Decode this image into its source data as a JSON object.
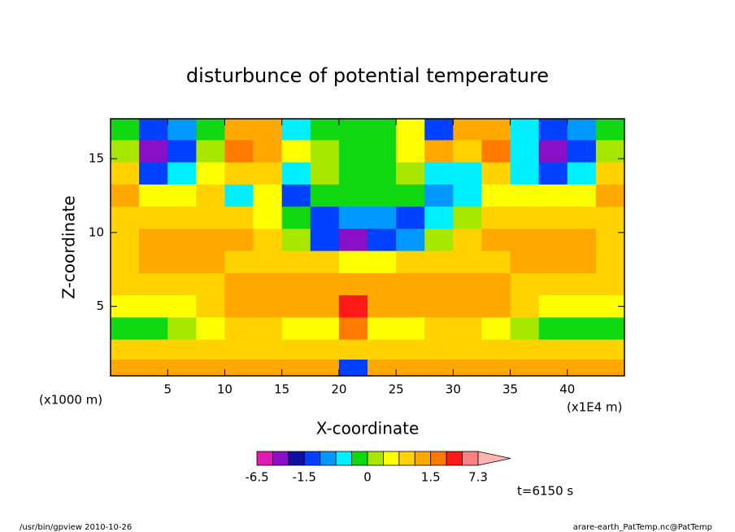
{
  "chart_data": {
    "type": "heatmap",
    "title": "disturbunce of potential temperature",
    "x_label": "X-coordinate",
    "y_label": "Z-coordinate",
    "x_unit": "(x1000 m)",
    "x_unit_right": "(x1E4 m)",
    "time_label": "t=6150 s",
    "footer_left": "/usr/bin/gpview  2010-10-26",
    "footer_right": "arare-earth_PatTemp.nc@PatTemp",
    "xlim": [
      0,
      45
    ],
    "ylim": [
      0.3,
      17.7
    ],
    "xticks": [
      5,
      10,
      15,
      20,
      25,
      30,
      35,
      40
    ],
    "yticks": [
      5,
      10,
      15
    ],
    "x": [
      1.25,
      3.75,
      6.25,
      8.75,
      11.25,
      13.75,
      16.25,
      18.75,
      21.25,
      23.75,
      26.25,
      28.75,
      31.25,
      33.75,
      36.25,
      38.75,
      41.25,
      43.75
    ],
    "y": [
      17,
      15.5,
      14,
      12.5,
      11,
      9.5,
      8,
      6.5,
      5,
      3.5,
      2,
      0.8
    ],
    "values": [
      [
        -0.2,
        -1.5,
        -0.6,
        -0.1,
        1.3,
        1.0,
        -0.3,
        -0.1,
        -0.1,
        -0.1,
        0.3,
        -1.5,
        1.0,
        1.0,
        -0.3,
        -1.5,
        -0.6,
        -0.1
      ],
      [
        0.2,
        -3.5,
        -1.2,
        0.1,
        1.6,
        1.2,
        0.3,
        0.2,
        -0.1,
        -0.1,
        0.3,
        1.2,
        0.6,
        1.6,
        -0.5,
        -3.5,
        -1.2,
        0.2
      ],
      [
        0.6,
        -1.2,
        -0.4,
        0.3,
        0.8,
        0.6,
        -0.3,
        0.1,
        -0.1,
        -0.1,
        0.2,
        -0.3,
        -0.4,
        0.8,
        -0.3,
        -1.2,
        -0.4,
        0.6
      ],
      [
        1.2,
        0.3,
        0.3,
        0.5,
        -0.3,
        0.3,
        -1.2,
        -0.2,
        -0.1,
        -0.1,
        -0.2,
        -0.6,
        -0.3,
        0.3,
        0.3,
        0.3,
        0.3,
        1.2
      ],
      [
        0.6,
        0.5,
        0.5,
        0.6,
        0.6,
        0.3,
        -0.2,
        -1.2,
        -0.8,
        -0.8,
        -1.2,
        -0.3,
        0.2,
        0.5,
        0.5,
        0.5,
        0.5,
        0.6
      ],
      [
        0.6,
        1.1,
        1.2,
        1.2,
        1.1,
        0.6,
        0.2,
        -1.2,
        -2.5,
        -1.5,
        -1.0,
        0.1,
        0.6,
        1.1,
        1.2,
        1.2,
        1.1,
        0.6
      ],
      [
        0.6,
        1.1,
        1.3,
        1.2,
        0.8,
        0.6,
        0.6,
        0.5,
        0.4,
        0.4,
        0.5,
        0.6,
        0.6,
        0.8,
        1.2,
        1.3,
        1.1,
        0.6
      ],
      [
        0.6,
        0.7,
        0.8,
        0.7,
        1.1,
        1.1,
        1.1,
        1.1,
        1.3,
        1.1,
        1.1,
        1.1,
        1.1,
        1.1,
        0.7,
        0.8,
        0.7,
        0.6
      ],
      [
        0.4,
        0.4,
        0.4,
        0.5,
        1.1,
        1.1,
        1.1,
        1.2,
        3.5,
        1.2,
        1.1,
        1.1,
        1.1,
        1.1,
        0.5,
        0.4,
        0.4,
        0.4
      ],
      [
        -0.2,
        -0.2,
        0.2,
        0.4,
        0.6,
        0.6,
        0.3,
        0.4,
        1.6,
        0.4,
        0.3,
        0.6,
        0.6,
        0.4,
        0.2,
        -0.2,
        -0.2,
        -0.2
      ],
      [
        0.8,
        0.8,
        0.8,
        0.8,
        0.9,
        0.9,
        0.8,
        0.8,
        0.6,
        0.8,
        0.8,
        0.9,
        0.9,
        0.8,
        0.8,
        0.8,
        0.8,
        0.8
      ],
      [
        1.2,
        1.2,
        1.2,
        1.2,
        1.2,
        1.2,
        1.2,
        1.1,
        -1.5,
        1.1,
        1.2,
        1.2,
        1.2,
        1.2,
        1.2,
        1.2,
        1.2,
        1.2
      ]
    ],
    "levels": [
      -6.5,
      -3.5,
      -2,
      -1.5,
      -1,
      -0.5,
      -0.25,
      0,
      0.25,
      0.5,
      1,
      1.5,
      3,
      5,
      7.3
    ],
    "colors": [
      "#e01ab4",
      "#8a10c8",
      "#1010a0",
      "#0040ff",
      "#0098ff",
      "#00f0ff",
      "#10d810",
      "#a8e800",
      "#ffff00",
      "#ffd200",
      "#ffa800",
      "#ff7a00",
      "#ff1a1a",
      "#ff8080",
      "#ffb4b4"
    ],
    "colorbar_ticks": [
      -6.5,
      -1.5,
      0,
      1.5,
      7.3
    ]
  }
}
